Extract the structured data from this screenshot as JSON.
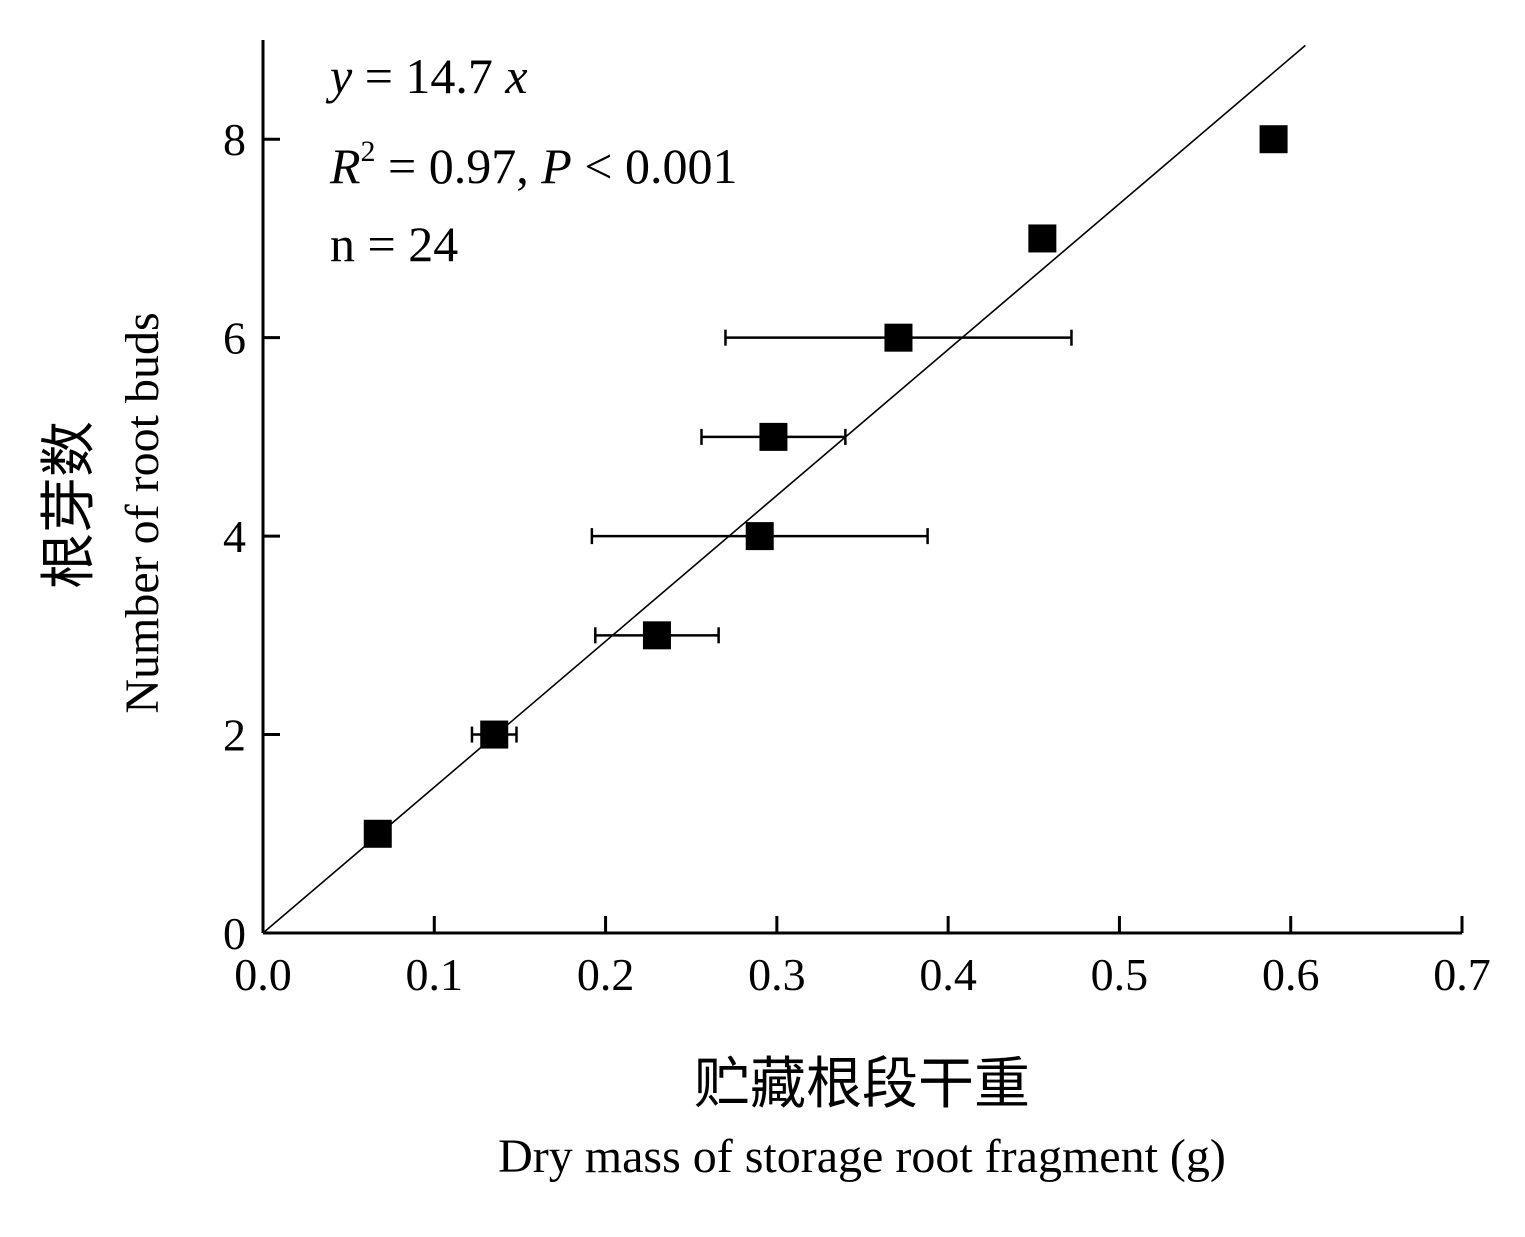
{
  "chart_data": {
    "type": "scatter",
    "xlabel_zh": "贮藏根段干重",
    "xlabel": "Dry mass of storage root fragment (g)",
    "ylabel_zh": "根芽数",
    "ylabel": "Number of root buds",
    "xlim": [
      0,
      0.7
    ],
    "ylim": [
      0,
      9
    ],
    "xticks": [
      "0.0",
      "0.1",
      "0.2",
      "0.3",
      "0.4",
      "0.5",
      "0.6",
      "0.7"
    ],
    "yticks": [
      "0",
      "2",
      "4",
      "6",
      "8"
    ],
    "annotation": {
      "equation": {
        "var": "y",
        "rhs": " = 14.7 ",
        "xvar": "x"
      },
      "r2": {
        "R": "R",
        "sup": "2",
        "rhs": " = 0.97, ",
        "P": "P",
        "prhs": " < 0.001"
      },
      "n": "n = 24"
    },
    "fit_line": {
      "slope": 14.7,
      "intercept": 0
    },
    "points": [
      {
        "x": 0.067,
        "y": 1,
        "xerr": 0
      },
      {
        "x": 0.135,
        "y": 2,
        "xerr": 0.013
      },
      {
        "x": 0.23,
        "y": 3,
        "xerr": 0.036
      },
      {
        "x": 0.29,
        "y": 4,
        "xerr": 0.098
      },
      {
        "x": 0.298,
        "y": 5,
        "xerr": 0.042
      },
      {
        "x": 0.371,
        "y": 6,
        "xerr": 0.101
      },
      {
        "x": 0.455,
        "y": 7,
        "xerr": 0
      },
      {
        "x": 0.59,
        "y": 8,
        "xerr": 0
      }
    ],
    "grid": false,
    "marker": "square",
    "color": "#000000"
  }
}
